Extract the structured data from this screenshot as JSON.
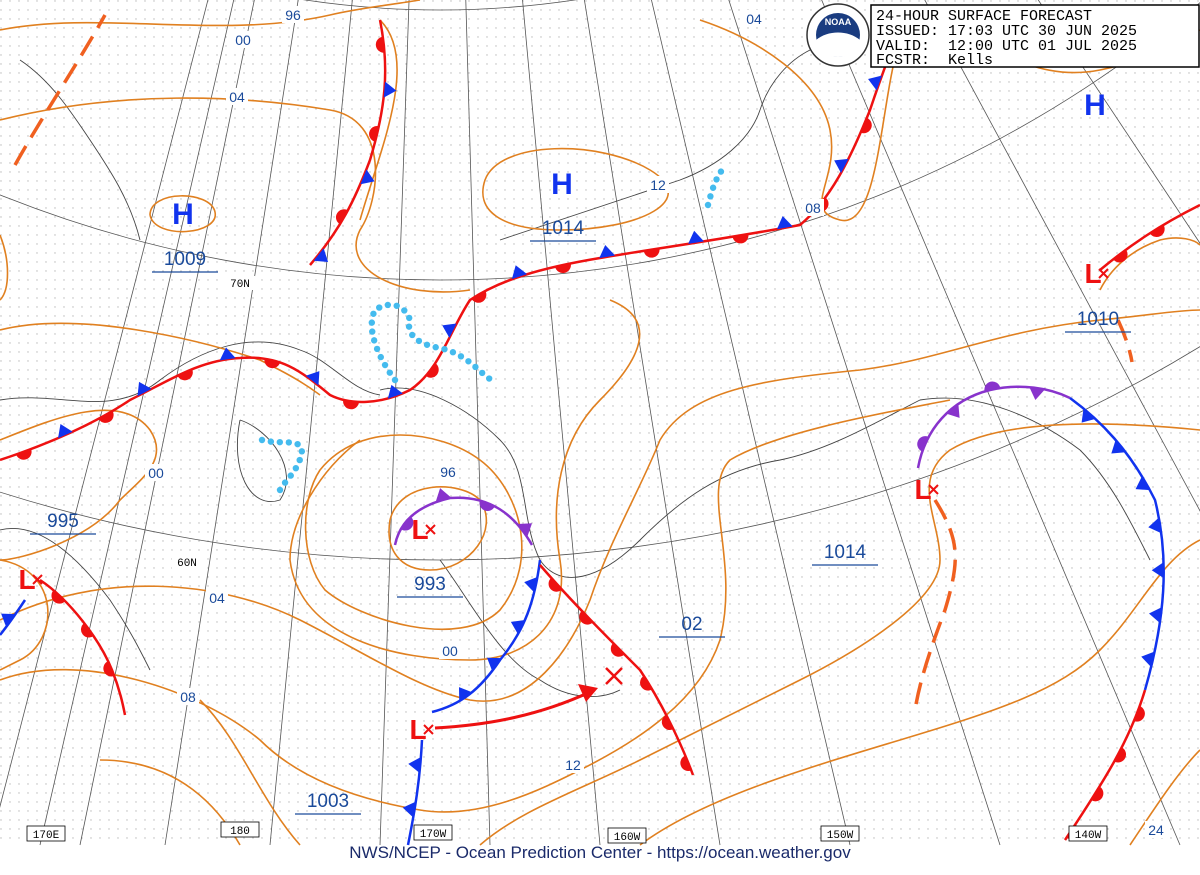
{
  "header": {
    "title": "24-HOUR SURFACE FORECAST",
    "issued": "ISSUED: 17:03 UTC 30 JUN 2025",
    "valid": "VALID:  12:00 UTC 01 JUL 2025",
    "forecaster": "FCSTR:  Kells"
  },
  "logo": "NOAA",
  "footer": "NWS/NCEP - Ocean Prediction Center - https://ocean.weather.gov",
  "centers": [
    "H",
    "H",
    "H",
    "L",
    "L",
    "L",
    "L",
    "L"
  ],
  "central_pressures": [
    1009,
    1014,
    995,
    993,
    1003,
    1010,
    1014,
    "02"
  ],
  "isobar_labels": [
    "96",
    "00",
    "04",
    "12",
    "04",
    "08",
    "00",
    "96",
    "04",
    "00",
    "08",
    "12",
    "24"
  ],
  "grid_labels": {
    "latitude": [
      "70N",
      "60N"
    ],
    "longitude": [
      "170E",
      "180",
      "170W",
      "160W",
      "150W",
      "140W"
    ]
  }
}
